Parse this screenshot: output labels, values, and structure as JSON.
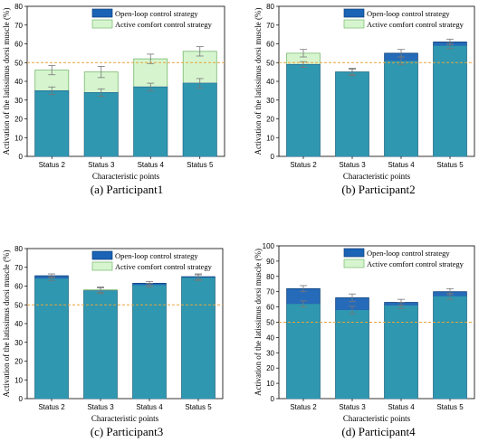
{
  "colors": {
    "open_loop_fill": "#1a63b5",
    "open_loop_stroke": "#0d3f7a",
    "active_comfort_fill": "#d6f5cf",
    "active_comfort_stroke": "#77b86c",
    "overlap_fill": "#2f97b0",
    "reference_line": "#e8a33a",
    "error_bar": "#777777"
  },
  "chart_data": [
    {
      "type": "bar",
      "title": "(a) Participant1",
      "xlabel": "Characteristic points",
      "ylabel": "Activation of the latissimus dorsi muscle (%)",
      "categories": [
        "Status 2",
        "Status 3",
        "Status 4",
        "Status 5"
      ],
      "ylim": [
        0,
        80
      ],
      "yticks": [
        0,
        10,
        20,
        30,
        40,
        50,
        60,
        70,
        80
      ],
      "reference_line": 50,
      "legend_position": "top-right",
      "series": [
        {
          "name": "Open-loop control strategy",
          "values": [
            35,
            34,
            37,
            39
          ],
          "errors": [
            2.0,
            2.0,
            2.0,
            2.5
          ]
        },
        {
          "name": "Active comfort control strategy",
          "values": [
            46,
            45,
            52,
            56
          ],
          "errors": [
            2.5,
            3.0,
            2.5,
            2.5
          ]
        }
      ]
    },
    {
      "type": "bar",
      "title": "(b) Participant2",
      "xlabel": "Characteristic points",
      "ylabel": "Activation of the latissimus dorsi muscle (%)",
      "categories": [
        "Status 2",
        "Status 3",
        "Status 4",
        "Status 5"
      ],
      "ylim": [
        0,
        80
      ],
      "yticks": [
        0,
        10,
        20,
        30,
        40,
        50,
        60,
        70,
        80
      ],
      "reference_line": 50,
      "legend_position": "top-right",
      "series": [
        {
          "name": "Open-loop control strategy",
          "values": [
            49,
            45,
            55,
            61
          ],
          "errors": [
            1.5,
            1.5,
            2.0,
            1.5
          ]
        },
        {
          "name": "Active comfort control strategy",
          "values": [
            55,
            45,
            51,
            59
          ],
          "errors": [
            2.0,
            2.0,
            2.0,
            1.5
          ]
        }
      ]
    },
    {
      "type": "bar",
      "title": "(c) Participant3",
      "xlabel": "Characteristic points",
      "ylabel": "Activation of the latissimus dorsi muscle (%)",
      "categories": [
        "Status 2",
        "Status 3",
        "Status 4",
        "Status 5"
      ],
      "ylim": [
        0,
        80
      ],
      "yticks": [
        0,
        10,
        20,
        30,
        40,
        50,
        60,
        70,
        80
      ],
      "reference_line": 50,
      "legend_position": "top-right",
      "series": [
        {
          "name": "Open-loop control strategy",
          "values": [
            65.5,
            57.5,
            61.5,
            65
          ],
          "errors": [
            1.0,
            1.5,
            1.0,
            1.5
          ]
        },
        {
          "name": "Active comfort control strategy",
          "values": [
            64,
            58,
            60.5,
            64.5
          ],
          "errors": [
            1.0,
            1.5,
            1.0,
            1.5
          ]
        }
      ]
    },
    {
      "type": "bar",
      "title": "(d) Participant4",
      "xlabel": "Characteristic points",
      "ylabel": "Activation of the latissimus dorsi muscle (%)",
      "categories": [
        "Status 2",
        "Status 3",
        "Status 4",
        "Status 5"
      ],
      "ylim": [
        0,
        100
      ],
      "yticks": [
        0,
        10,
        20,
        30,
        40,
        50,
        60,
        70,
        80,
        90,
        100
      ],
      "reference_line": 50,
      "legend_position": "top-right",
      "series": [
        {
          "name": "Open-loop control strategy",
          "values": [
            72,
            66,
            63,
            70
          ],
          "errors": [
            2.0,
            2.5,
            2.0,
            2.0
          ]
        },
        {
          "name": "Active comfort control strategy",
          "values": [
            62,
            58,
            61,
            67
          ],
          "errors": [
            2.0,
            2.5,
            2.0,
            2.0
          ]
        }
      ]
    }
  ]
}
